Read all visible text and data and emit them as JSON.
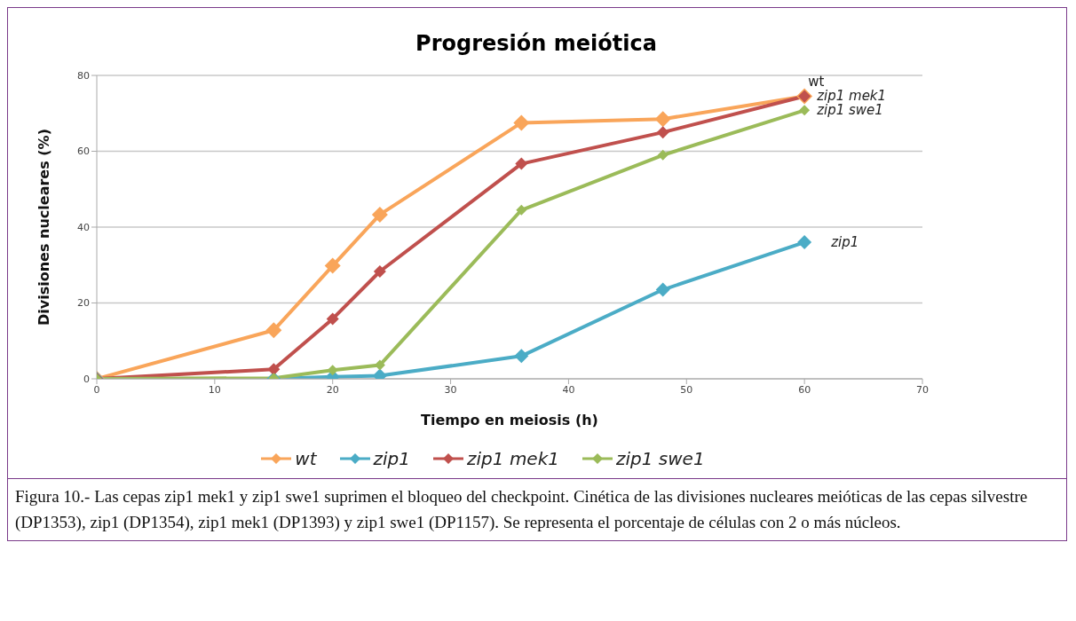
{
  "chart_data": {
    "type": "line",
    "title": "Progresión meiótica",
    "xlabel": "Tiempo en meiosis (h)",
    "ylabel": "Divisiones nucleares (%)",
    "x": [
      0,
      15,
      20,
      24,
      36,
      48,
      60
    ],
    "series": [
      {
        "name": "wt",
        "color": "#f9a55a",
        "values": [
          0,
          12.8,
          29.8,
          43.3,
          67.5,
          68.5,
          74.5
        ]
      },
      {
        "name": "zip1",
        "color": "#4bacc6",
        "values": [
          0,
          0,
          0.5,
          0.8,
          6,
          23.5,
          36
        ]
      },
      {
        "name": "zip1 mek1",
        "color": "#c0504d",
        "values": [
          0,
          2.5,
          15.8,
          28.3,
          56.7,
          65,
          74.5
        ]
      },
      {
        "name": "zip1 swe1",
        "color": "#9bbb59",
        "values": [
          0,
          0.2,
          2.3,
          3.6,
          44.5,
          59,
          70.8
        ]
      }
    ],
    "xlim": [
      0,
      70
    ],
    "xticks": [
      0,
      10,
      20,
      30,
      40,
      50,
      60,
      70
    ],
    "ylim": [
      0,
      80
    ],
    "yticks": [
      0,
      20,
      40,
      60,
      80
    ],
    "grid": "y",
    "legend": "bottom",
    "marker": "diamond",
    "line_style": "solid",
    "annotations": [
      "Figura 10.- Las cepas zip1 mek1 y zip1 swe1 suprimen el bloqueo del checkpoint. Cinética de las divisiones nucleares meióticas de las cepas silvestre (DP1353), zip1 (DP1354), zip1 mek1 (DP1393) y zip1 swe1 (DP1157). Se representa el porcentaje de células con 2 o más núcleos."
    ]
  }
}
